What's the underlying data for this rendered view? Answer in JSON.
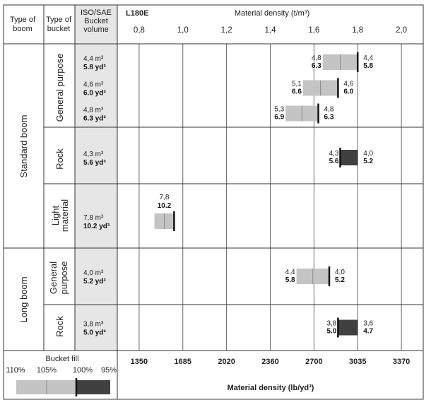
{
  "header": {
    "type_of_boom_line1": "Type of",
    "type_of_boom_line2": "boom",
    "type_of_bucket_line1": "Type of",
    "type_of_bucket_line2": "bucket",
    "volume_line1": "ISO/SAE",
    "volume_line2": "Bucket",
    "volume_line3": "volume",
    "model": "L180E",
    "axis_title": "Material density (t/m³)"
  },
  "footer": {
    "bucket_fill_title": "Bucket fill",
    "fill_levels": [
      "110%",
      "105%",
      "100%",
      "95%"
    ],
    "bottom_axis_title": "Material density (lb/yd³)"
  },
  "colors": {
    "light_bar": "#c4c4c4",
    "dark_bar": "#404040",
    "volume_col": "#e6e6e6",
    "grid": "#555555"
  },
  "chart_data": {
    "type": "range-bar",
    "x_top": {
      "label": "Material density (t/m³)",
      "ticks": [
        "0,8",
        "1,0",
        "1,2",
        "1,4",
        "1,6",
        "1,8",
        "2,0"
      ],
      "tick_values": [
        0.8,
        1.0,
        1.2,
        1.4,
        1.6,
        1.8,
        2.0
      ],
      "range": [
        0.7,
        2.1
      ]
    },
    "x_bottom": {
      "label": "Material density (lb/yd³)",
      "ticks": [
        "1350",
        "1685",
        "2020",
        "2360",
        "2700",
        "3035",
        "3370"
      ]
    },
    "rows": [
      {
        "boom": "Standard boom",
        "bucket": "General purpose",
        "vol_m3": "4,4 m³",
        "vol_yd3": "5.8 yd³",
        "d110": 1.64,
        "d100": 1.8,
        "d95": 1.8,
        "left_m3": "4,8",
        "left_yd3": "6.3",
        "right_m3": "4,4",
        "right_yd3": "5.8"
      },
      {
        "boom": "Standard boom",
        "bucket": "General purpose",
        "vol_m3": "4,6 m³",
        "vol_yd3": "6.0 yd³",
        "d110": 1.55,
        "d100": 1.71,
        "d95": 1.71,
        "left_m3": "5,1",
        "left_yd3": "6.6",
        "right_m3": "4,6",
        "right_yd3": "6.0"
      },
      {
        "boom": "Standard boom",
        "bucket": "General purpose",
        "vol_m3": "4,8 m³",
        "vol_yd3": "6.3 yd³",
        "d110": 1.47,
        "d100": 1.62,
        "d95": 1.62,
        "left_m3": "5,3",
        "left_yd3": "6.9",
        "right_m3": "4,8",
        "right_yd3": "6.3"
      },
      {
        "boom": "Standard boom",
        "bucket": "Rock",
        "vol_m3": "4,3 m³",
        "vol_yd3": "5.6 yd³",
        "d110": 1.72,
        "d100": 1.72,
        "d95": 1.8,
        "left_m3": "4,3",
        "left_yd3": "5.6",
        "right_m3": "4,0",
        "right_yd3": "5.2"
      },
      {
        "boom": "Standard boom",
        "bucket": "Light material",
        "vol_m3": "7,8 m³",
        "vol_yd3": "10.2 yd³",
        "d110": 0.87,
        "d100": 0.96,
        "d95": 0.96,
        "top_m3": "7,8",
        "top_yd3": "10.2"
      },
      {
        "boom": "Long boom",
        "bucket": "General purpose",
        "vol_m3": "4,0 m³",
        "vol_yd3": "5.2 yd³",
        "d110": 1.52,
        "d100": 1.67,
        "d95": 1.67,
        "left_m3": "4,4",
        "left_yd3": "5.8",
        "right_m3": "4,0",
        "right_yd3": "5.2"
      },
      {
        "boom": "Long boom",
        "bucket": "Rock",
        "vol_m3": "3,8 m³",
        "vol_yd3": "5.0 yd³",
        "d110": 1.71,
        "d100": 1.71,
        "d95": 1.8,
        "left_m3": "3,8",
        "left_yd3": "5.0",
        "right_m3": "3,6",
        "right_yd3": "4.7"
      }
    ],
    "booms": [
      "Standard boom",
      "Long boom"
    ],
    "buckets": [
      "General purpose",
      "Rock",
      "Light material",
      "General purpose",
      "Rock"
    ]
  }
}
